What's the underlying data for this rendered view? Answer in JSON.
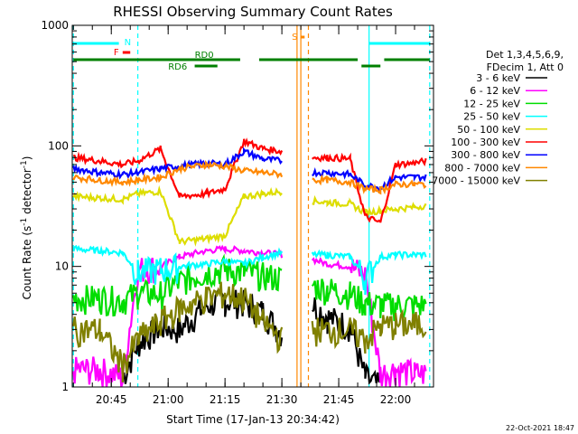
{
  "chart_data": {
    "type": "line",
    "title": "RHESSI Observing Summary Count Rates",
    "ylabel_main": "Count Rate (s",
    "ylabel_sup": "-1",
    "ylabel_mid": " detector",
    "ylabel_end": ")",
    "xlabel": "Start Time (17-Jan-13 20:34:42)",
    "yscale": "log",
    "ylim": [
      1,
      1000
    ],
    "xlim": [
      "20:34:42",
      "22:10:00"
    ],
    "x_ticks": [
      "20:45",
      "21:00",
      "21:15",
      "21:30",
      "21:45",
      "22:00"
    ],
    "y_ticks": [
      "1",
      "10",
      "100",
      "1000"
    ],
    "grid": false,
    "legend_header": [
      "Det 1,3,4,5,6,9,",
      "FDecim 1, Att 0"
    ],
    "legend_position": "right",
    "series": [
      {
        "name": "3 - 6 keV",
        "color": "#000000",
        "x": [
          "20:35",
          "20:42",
          "20:48",
          "20:52",
          "20:58",
          "21:03",
          "21:10",
          "21:15",
          "21:20",
          "21:25",
          "21:30",
          "21:32",
          "21:38",
          "21:42",
          "21:48",
          "21:52",
          "21:56",
          "22:00",
          "22:05",
          "22:08"
        ],
        "values": [
          null,
          null,
          1.2,
          2.3,
          3.2,
          3.0,
          4.8,
          5.2,
          5.0,
          4.2,
          2.8,
          null,
          5.0,
          3.8,
          3.2,
          1.2,
          1.0,
          null,
          null,
          null
        ]
      },
      {
        "name": "6 - 12 keV",
        "color": "#ff00ff",
        "x": [
          "20:35",
          "20:42",
          "20:48",
          "20:52",
          "20:58",
          "21:03",
          "21:10",
          "21:15",
          "21:20",
          "21:25",
          "21:30",
          "21:32",
          "21:38",
          "21:42",
          "21:48",
          "21:52",
          "21:56",
          "22:00",
          "22:05",
          "22:08"
        ],
        "values": [
          1.4,
          1.4,
          1.2,
          9.5,
          10.0,
          12.0,
          13.5,
          14.0,
          13.5,
          13.0,
          12.5,
          null,
          11.5,
          10.5,
          10.0,
          8.5,
          1.3,
          1.4,
          1.3,
          1.3
        ]
      },
      {
        "name": "12 - 25 keV",
        "color": "#00dd00",
        "x": [
          "20:35",
          "20:42",
          "20:48",
          "20:52",
          "20:58",
          "21:03",
          "21:10",
          "21:15",
          "21:20",
          "21:25",
          "21:30",
          "21:32",
          "21:38",
          "21:42",
          "21:48",
          "21:52",
          "21:56",
          "22:00",
          "22:05",
          "22:08"
        ],
        "values": [
          5.5,
          5.5,
          5.3,
          6.0,
          6.0,
          7.5,
          9.0,
          9.5,
          9.0,
          8.5,
          8.0,
          null,
          7.0,
          6.5,
          6.0,
          5.0,
          4.8,
          4.8,
          4.8,
          4.8
        ]
      },
      {
        "name": "25 - 50 keV",
        "color": "#00ffff",
        "x": [
          "20:35",
          "20:42",
          "20:48",
          "20:52",
          "20:58",
          "21:03",
          "21:10",
          "21:15",
          "21:20",
          "21:25",
          "21:30",
          "21:32",
          "21:38",
          "21:42",
          "21:48",
          "21:52",
          "21:56",
          "22:00",
          "22:05",
          "22:08"
        ],
        "values": [
          14.0,
          13.5,
          13.0,
          9.0,
          9.5,
          10.0,
          10.5,
          11.0,
          10.5,
          12.0,
          13.0,
          null,
          12.5,
          12.5,
          12.0,
          8.0,
          12.0,
          12.5,
          12.5,
          12.5
        ]
      },
      {
        "name": "50 - 100 keV",
        "color": "#dddd00",
        "x": [
          "20:35",
          "20:42",
          "20:48",
          "20:52",
          "20:58",
          "21:03",
          "21:10",
          "21:15",
          "21:20",
          "21:25",
          "21:30",
          "21:32",
          "21:38",
          "21:42",
          "21:48",
          "21:52",
          "21:56",
          "22:00",
          "22:05",
          "22:08"
        ],
        "values": [
          38,
          37,
          36,
          40,
          42,
          16,
          17,
          18,
          38,
          40,
          42,
          null,
          35,
          34,
          33,
          28,
          29,
          30,
          31,
          32
        ]
      },
      {
        "name": "100 - 300 keV",
        "color": "#ff0000",
        "x": [
          "20:35",
          "20:42",
          "20:48",
          "20:52",
          "20:58",
          "21:03",
          "21:10",
          "21:15",
          "21:20",
          "21:25",
          "21:30",
          "21:32",
          "21:38",
          "21:42",
          "21:48",
          "21:52",
          "21:56",
          "22:00",
          "22:05",
          "22:08"
        ],
        "values": [
          80,
          75,
          70,
          75,
          95,
          38,
          40,
          44,
          110,
          95,
          90,
          null,
          80,
          80,
          78,
          26,
          23,
          70,
          72,
          75
        ]
      },
      {
        "name": "300 - 800 keV",
        "color": "#0000ff",
        "x": [
          "20:35",
          "20:42",
          "20:48",
          "20:52",
          "20:58",
          "21:03",
          "21:10",
          "21:15",
          "21:20",
          "21:25",
          "21:30",
          "21:32",
          "21:38",
          "21:42",
          "21:48",
          "21:52",
          "21:56",
          "22:00",
          "22:05",
          "22:08"
        ],
        "values": [
          65,
          60,
          58,
          60,
          65,
          68,
          72,
          70,
          90,
          78,
          75,
          null,
          60,
          60,
          58,
          47,
          45,
          55,
          55,
          55
        ]
      },
      {
        "name": "800 - 7000 keV",
        "color": "#ff8800",
        "x": [
          "20:35",
          "20:42",
          "20:48",
          "20:52",
          "20:58",
          "21:03",
          "21:10",
          "21:15",
          "21:20",
          "21:25",
          "21:30",
          "21:32",
          "21:38",
          "21:42",
          "21:48",
          "21:52",
          "21:56",
          "22:00",
          "22:05",
          "22:08"
        ],
        "values": [
          55,
          52,
          50,
          52,
          55,
          65,
          70,
          68,
          62,
          60,
          58,
          null,
          52,
          52,
          50,
          44,
          43,
          48,
          48,
          48
        ]
      },
      {
        "name": "7000 - 15000 keV",
        "color": "#808000",
        "x": [
          "20:35",
          "20:42",
          "20:48",
          "20:52",
          "20:58",
          "21:03",
          "21:10",
          "21:15",
          "21:20",
          "21:25",
          "21:30",
          "21:32",
          "21:38",
          "21:42",
          "21:48",
          "21:52",
          "21:56",
          "22:00",
          "22:05",
          "22:08"
        ],
        "values": [
          3.0,
          3.0,
          1.5,
          2.5,
          3.5,
          4.5,
          5.5,
          6.0,
          5.5,
          3.5,
          2.5,
          null,
          3.0,
          3.0,
          3.0,
          2.5,
          3.2,
          3.3,
          3.3,
          3.3
        ]
      }
    ],
    "flags": [
      {
        "label": "N",
        "color": "#00ffff",
        "segments": [
          [
            "20:35",
            "20:47"
          ],
          [
            "21:53",
            "22:09"
          ]
        ]
      },
      {
        "label": "F",
        "color": "#ff0000",
        "segments": [
          [
            "20:48",
            "20:50"
          ]
        ]
      },
      {
        "label": "S",
        "color": "#ff8800",
        "segments": [
          [
            "21:35",
            "21:36"
          ]
        ]
      },
      {
        "label": "RD0",
        "color": "#008000",
        "segments": [
          [
            "20:35",
            "21:19"
          ],
          [
            "21:24",
            "21:50"
          ],
          [
            "21:57",
            "22:09"
          ]
        ]
      },
      {
        "label": "RD6",
        "color": "#008000",
        "segments": [
          [
            "21:07",
            "21:13"
          ],
          [
            "21:51",
            "21:56"
          ]
        ]
      }
    ],
    "vertical_markers": [
      {
        "time": "20:35",
        "color": "#00ffff",
        "style": "dashed"
      },
      {
        "time": "20:52",
        "color": "#00ffff",
        "style": "dashed"
      },
      {
        "time": "21:53",
        "color": "#00ffff",
        "style": "solid"
      },
      {
        "time": "22:09",
        "color": "#00ffff",
        "style": "dashed"
      },
      {
        "time": "21:34",
        "color": "#ff8800",
        "style": "solid"
      },
      {
        "time": "21:35",
        "color": "#ff8800",
        "style": "solid"
      },
      {
        "time": "21:37",
        "color": "#ff8800",
        "style": "dashed"
      }
    ],
    "footer_date": "22-Oct-2021 18:47"
  }
}
